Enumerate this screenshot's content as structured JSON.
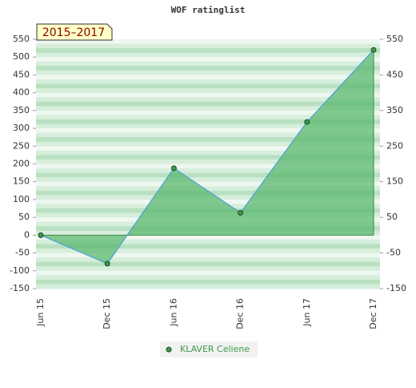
{
  "chart_data": {
    "type": "line",
    "title": "WOF ratinglist",
    "annotation": "2015–2017",
    "categories": [
      "Jun 15",
      "Dec 15",
      "Jun 16",
      "Dec 16",
      "Jun 17",
      "Dec 17"
    ],
    "series": [
      {
        "name": "KLAVER Celiene",
        "color": "#4a9fd8",
        "marker_color": "#3d9a4a",
        "fill": "#5cb870",
        "values": [
          0,
          -80,
          188,
          63,
          318,
          520
        ]
      }
    ],
    "ylim": [
      -150,
      550
    ],
    "yticks": [
      -150,
      -100,
      -50,
      0,
      50,
      100,
      150,
      200,
      250,
      300,
      350,
      400,
      450,
      500,
      550
    ],
    "y2lim": [
      -150,
      550
    ],
    "y2ticks": [
      -150,
      -50,
      50,
      150,
      250,
      350,
      450,
      550
    ],
    "legend": "bottom"
  }
}
